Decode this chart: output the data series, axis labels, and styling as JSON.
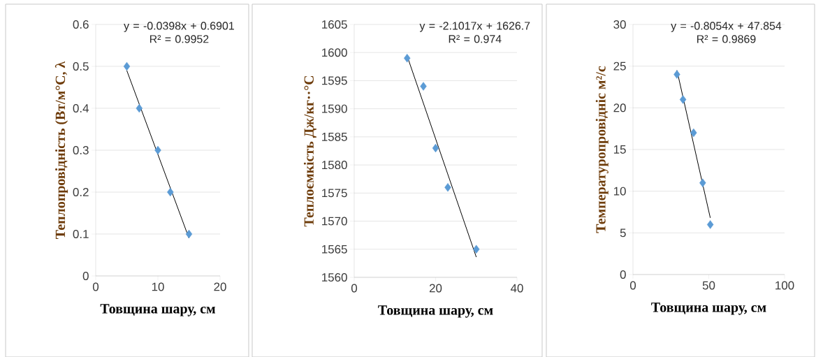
{
  "chart_data": [
    {
      "type": "scatter",
      "xlabel": "Товщина шару, см",
      "ylabel": "Теплопровідність    (Вт/м°С, λ",
      "xlim": [
        0,
        20
      ],
      "ylim": [
        0,
        0.6
      ],
      "xticks": [
        0,
        10,
        20
      ],
      "yticks": [
        0,
        0.1,
        0.2,
        0.3,
        0.4,
        0.5,
        0.6
      ],
      "grid": "y",
      "annotations": [
        "y = -0.0398x + 0.6901",
        "R² = 0.9952"
      ],
      "series": [
        {
          "color": "#5b9bd5",
          "marker": "diamond",
          "x": [
            5,
            7,
            10,
            12,
            15
          ],
          "values": [
            0.5,
            0.4,
            0.3,
            0.2,
            0.1
          ]
        },
        {
          "type": "line",
          "color": "#000000",
          "marker": "none",
          "x": [
            5,
            15
          ],
          "values": [
            0.49,
            0.09
          ]
        }
      ]
    },
    {
      "type": "scatter",
      "xlabel": "Товщина шару, см",
      "ylabel": "Теплоємкість    Дж/кг··°С",
      "xlim": [
        0,
        40
      ],
      "ylim": [
        1560,
        1605
      ],
      "xticks": [
        0,
        20,
        40
      ],
      "yticks": [
        1560,
        1565,
        1570,
        1575,
        1580,
        1585,
        1590,
        1595,
        1600,
        1605
      ],
      "grid": "y",
      "annotations": [
        "y = -2.1017x + 1626.7",
        "R² = 0.974"
      ],
      "series": [
        {
          "color": "#5b9bd5",
          "marker": "diamond",
          "x": [
            13,
            17,
            20,
            23,
            30
          ],
          "values": [
            1599,
            1594,
            1583,
            1576,
            1565
          ]
        },
        {
          "type": "line",
          "color": "#000000",
          "marker": "none",
          "x": [
            13,
            30
          ],
          "values": [
            1599.4,
            1563.6
          ]
        }
      ]
    },
    {
      "type": "scatter",
      "xlabel": "Товщина шару, см",
      "ylabel": "Температуропровідніс    м²/с",
      "xlim": [
        0,
        100
      ],
      "ylim": [
        0,
        30
      ],
      "xticks": [
        0,
        50,
        100
      ],
      "yticks": [
        0,
        5,
        10,
        15,
        20,
        25,
        30
      ],
      "grid": "y",
      "annotations": [
        "y = -0.8054x + 47.854",
        "R² = 0.9869"
      ],
      "series": [
        {
          "color": "#5b9bd5",
          "marker": "diamond",
          "x": [
            29,
            33,
            40,
            46,
            51
          ],
          "values": [
            24,
            21,
            17,
            11,
            6
          ]
        },
        {
          "type": "line",
          "color": "#000000",
          "marker": "none",
          "x": [
            29,
            51
          ],
          "values": [
            24.5,
            6.8
          ]
        }
      ]
    }
  ]
}
